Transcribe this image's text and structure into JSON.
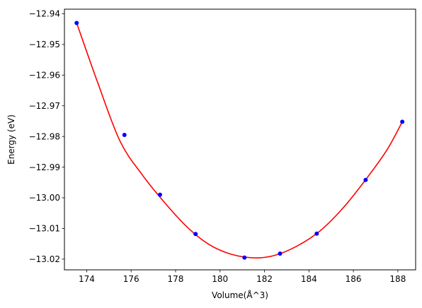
{
  "chart_data": {
    "type": "scatter",
    "title": "",
    "xlabel": "Volume(Å^3)",
    "ylabel": "Energy (eV)",
    "xlim": [
      173.0,
      188.8
    ],
    "ylim": [
      -13.0235,
      -12.9385
    ],
    "x_ticks": [
      174,
      176,
      178,
      180,
      182,
      184,
      186,
      188
    ],
    "x_tick_labels": [
      "174",
      "176",
      "178",
      "180",
      "182",
      "184",
      "186",
      "188"
    ],
    "y_ticks": [
      -12.94,
      -12.95,
      -12.96,
      -12.97,
      -12.98,
      -12.99,
      -13.0,
      -13.01,
      -13.02
    ],
    "y_tick_labels": [
      "−12.94",
      "−12.95",
      "−12.96",
      "−12.97",
      "−12.98",
      "−12.99",
      "−13.00",
      "−13.01",
      "−13.02"
    ],
    "grid": false,
    "legend": "none",
    "points": {
      "color": "#0000ff",
      "x": [
        173.55,
        175.7,
        177.3,
        178.9,
        181.1,
        182.7,
        184.35,
        186.55,
        188.2
      ],
      "y": [
        -12.943,
        -12.9795,
        -12.999,
        -13.0118,
        -13.0195,
        -13.0182,
        -13.0117,
        -12.9942,
        -12.9752
      ]
    },
    "fit_curve": {
      "color": "#ff0000",
      "x": [
        173.55,
        174.5,
        175.5,
        176.5,
        177.5,
        178.5,
        179.5,
        180.5,
        181.6,
        182.5,
        183.5,
        184.5,
        185.5,
        186.5,
        187.5,
        188.2
      ],
      "y": [
        -12.943,
        -12.9625,
        -12.9815,
        -12.9925,
        -13.0015,
        -13.0094,
        -13.0152,
        -13.0184,
        -13.0196,
        -13.0187,
        -13.0156,
        -13.0108,
        -13.0036,
        -12.9946,
        -12.9845,
        -12.9752
      ]
    }
  }
}
